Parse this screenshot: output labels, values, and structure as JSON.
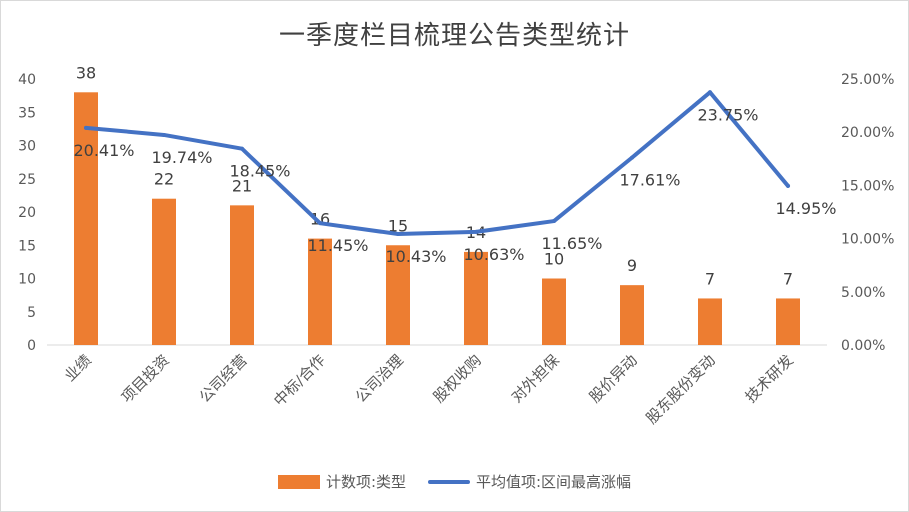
{
  "chart_data": {
    "type": "bar",
    "title": "一季度栏目梳理公告类型统计",
    "categories": [
      "业绩",
      "项目投资",
      "公司经营",
      "中标/合作",
      "公司治理",
      "股权收购",
      "对外担保",
      "股价异动",
      "股东股份变动",
      "技术研发"
    ],
    "series": [
      {
        "name": "计数项:类型",
        "type": "bar",
        "axis": "left",
        "values": [
          38,
          22,
          21,
          16,
          15,
          14,
          10,
          9,
          7,
          7
        ],
        "labels": [
          "38",
          "22",
          "21",
          "16",
          "15",
          "14",
          "10",
          "9",
          "7",
          "7"
        ],
        "color": "#ed7d31"
      },
      {
        "name": "平均值项:区间最高涨幅",
        "type": "line",
        "axis": "right",
        "values": [
          20.41,
          19.74,
          18.45,
          11.45,
          10.43,
          10.63,
          11.65,
          17.61,
          23.75,
          14.95
        ],
        "labels": [
          "20.41%",
          "19.74%",
          "18.45%",
          "11.45%",
          "10.43%",
          "10.63%",
          "11.65%",
          "17.61%",
          "23.75%",
          "14.95%"
        ],
        "color": "#4472c4"
      }
    ],
    "y_left": {
      "range": [
        0,
        40
      ],
      "ticks": [
        "0",
        "5",
        "10",
        "15",
        "20",
        "25",
        "30",
        "35",
        "40"
      ]
    },
    "y_right": {
      "range": [
        0,
        25
      ],
      "ticks": [
        "0.00%",
        "5.00%",
        "10.00%",
        "15.00%",
        "20.00%",
        "25.00%"
      ]
    },
    "grid": false,
    "legend": "bottom"
  }
}
